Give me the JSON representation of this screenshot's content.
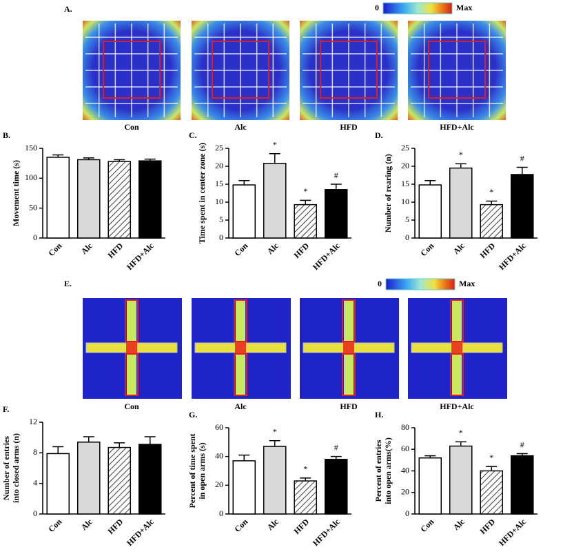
{
  "heatmap_panels": [
    {
      "label": "A.",
      "scale_min": "0",
      "scale_max": "Max",
      "conditions": [
        "Con",
        "Alc",
        "HFD",
        "HFD+Alc"
      ]
    },
    {
      "label": "E.",
      "scale_min": "0",
      "scale_max": "Max",
      "conditions": [
        "Con",
        "Alc",
        "HFD",
        "HFD+Alc"
      ]
    }
  ],
  "chart_data": [
    {
      "type": "bar",
      "panel": "B.",
      "ylabel": [
        "Movement time (s)"
      ],
      "categories": [
        "Con",
        "Alc",
        "HFD",
        "HFD+Alc"
      ],
      "values": [
        135,
        131,
        128,
        129
      ],
      "errors": [
        4,
        3,
        3,
        3
      ],
      "annotations": [
        null,
        null,
        null,
        null
      ],
      "colors": [
        "#ffffff",
        "#d9d9d9",
        "#ffffff",
        "#000000"
      ],
      "patterns": [
        "solid",
        "solid",
        "hatch",
        "solid"
      ],
      "ylim": [
        0,
        150
      ],
      "yticks": [
        0,
        50,
        100,
        150
      ]
    },
    {
      "type": "bar",
      "panel": "C.",
      "ylabel": [
        "Time spent in center zone (s)"
      ],
      "categories": [
        "Con",
        "Alc",
        "HFD",
        "HFD+Alc"
      ],
      "values": [
        14.8,
        20.8,
        9.3,
        13.5
      ],
      "errors": [
        1.2,
        2.7,
        1.2,
        1.5
      ],
      "annotations": [
        null,
        "*",
        "*",
        "#"
      ],
      "colors": [
        "#ffffff",
        "#d9d9d9",
        "#ffffff",
        "#000000"
      ],
      "patterns": [
        "solid",
        "solid",
        "hatch",
        "solid"
      ],
      "ylim": [
        0,
        25
      ],
      "yticks": [
        0,
        5,
        10,
        15,
        20,
        25
      ]
    },
    {
      "type": "bar",
      "panel": "D.",
      "ylabel": [
        "Number of rearing (n)"
      ],
      "categories": [
        "Con",
        "Alc",
        "HFD",
        "HFD+Alc"
      ],
      "values": [
        14.8,
        19.5,
        9.3,
        17.7
      ],
      "errors": [
        1.2,
        1.2,
        1.0,
        2.0
      ],
      "annotations": [
        null,
        "*",
        "*",
        "#"
      ],
      "colors": [
        "#ffffff",
        "#d9d9d9",
        "#ffffff",
        "#000000"
      ],
      "patterns": [
        "solid",
        "solid",
        "hatch",
        "solid"
      ],
      "ylim": [
        0,
        25
      ],
      "yticks": [
        0,
        5,
        10,
        15,
        20,
        25
      ]
    },
    {
      "type": "bar",
      "panel": "F.",
      "ylabel": [
        "Number of entries",
        "into closed arms (n)"
      ],
      "categories": [
        "Con",
        "Alc",
        "HFD",
        "HFD+Alc"
      ],
      "values": [
        7.9,
        9.4,
        8.7,
        9.1
      ],
      "errors": [
        0.9,
        0.7,
        0.6,
        1.0
      ],
      "annotations": [
        null,
        null,
        null,
        null
      ],
      "colors": [
        "#ffffff",
        "#d9d9d9",
        "#ffffff",
        "#000000"
      ],
      "patterns": [
        "solid",
        "solid",
        "hatch",
        "solid"
      ],
      "ylim": [
        0,
        12
      ],
      "yticks": [
        0,
        4,
        8,
        12
      ]
    },
    {
      "type": "bar",
      "panel": "G.",
      "ylabel": [
        "Percent of time spent",
        "in open arms (s)"
      ],
      "categories": [
        "Con",
        "Alc",
        "HFD",
        "HFD+Alc"
      ],
      "values": [
        37,
        47,
        23,
        38
      ],
      "errors": [
        4,
        4,
        2,
        2
      ],
      "annotations": [
        null,
        "*",
        "*",
        "#"
      ],
      "colors": [
        "#ffffff",
        "#d9d9d9",
        "#ffffff",
        "#000000"
      ],
      "patterns": [
        "solid",
        "solid",
        "hatch",
        "solid"
      ],
      "ylim": [
        0,
        60
      ],
      "yticks": [
        0,
        20,
        40,
        60
      ]
    },
    {
      "type": "bar",
      "panel": "H.",
      "ylabel": [
        "Percent of entries",
        "into open arms(%)"
      ],
      "categories": [
        "Con",
        "Alc",
        "HFD",
        "HFD+Alc"
      ],
      "values": [
        52,
        63,
        40,
        54
      ],
      "errors": [
        2,
        4,
        4,
        2
      ],
      "annotations": [
        null,
        "*",
        "*",
        "#"
      ],
      "colors": [
        "#ffffff",
        "#d9d9d9",
        "#ffffff",
        "#000000"
      ],
      "patterns": [
        "solid",
        "solid",
        "hatch",
        "solid"
      ],
      "ylim": [
        0,
        80
      ],
      "yticks": [
        0,
        20,
        40,
        60,
        80
      ]
    }
  ]
}
